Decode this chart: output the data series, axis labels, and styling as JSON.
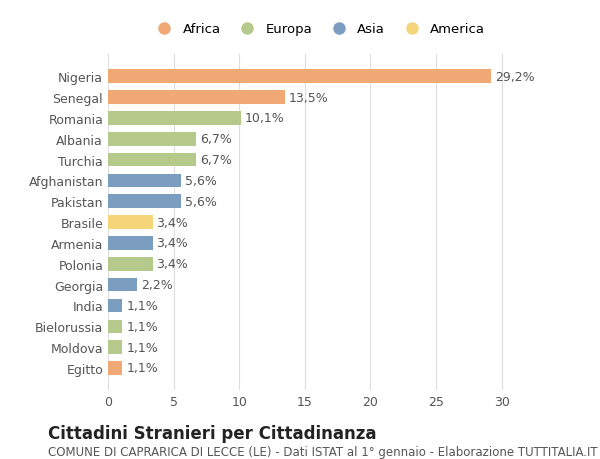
{
  "countries": [
    "Nigeria",
    "Senegal",
    "Romania",
    "Albania",
    "Turchia",
    "Afghanistan",
    "Pakistan",
    "Brasile",
    "Armenia",
    "Polonia",
    "Georgia",
    "India",
    "Bielorussia",
    "Moldova",
    "Egitto"
  ],
  "values": [
    29.2,
    13.5,
    10.1,
    6.7,
    6.7,
    5.6,
    5.6,
    3.4,
    3.4,
    3.4,
    2.2,
    1.1,
    1.1,
    1.1,
    1.1
  ],
  "labels": [
    "29,2%",
    "13,5%",
    "10,1%",
    "6,7%",
    "6,7%",
    "5,6%",
    "5,6%",
    "3,4%",
    "3,4%",
    "3,4%",
    "2,2%",
    "1,1%",
    "1,1%",
    "1,1%",
    "1,1%"
  ],
  "continents": [
    "Africa",
    "Africa",
    "Europa",
    "Europa",
    "Europa",
    "Asia",
    "Asia",
    "America",
    "Asia",
    "Europa",
    "Asia",
    "Asia",
    "Europa",
    "Europa",
    "Africa"
  ],
  "colors": {
    "Africa": "#F0A875",
    "Europa": "#B5C98A",
    "Asia": "#7B9DC0",
    "America": "#F5D47A"
  },
  "legend_order": [
    "Africa",
    "Europa",
    "Asia",
    "America"
  ],
  "xlim": [
    0,
    32
  ],
  "xticks": [
    0,
    5,
    10,
    15,
    20,
    25,
    30
  ],
  "title": "Cittadini Stranieri per Cittadinanza",
  "subtitle": "COMUNE DI CAPRARICA DI LECCE (LE) - Dati ISTAT al 1° gennaio - Elaborazione TUTTITALIA.IT",
  "bg_color": "#ffffff",
  "grid_color": "#dddddd",
  "bar_height": 0.65,
  "label_fontsize": 9,
  "tick_fontsize": 9,
  "title_fontsize": 12,
  "subtitle_fontsize": 8.5
}
